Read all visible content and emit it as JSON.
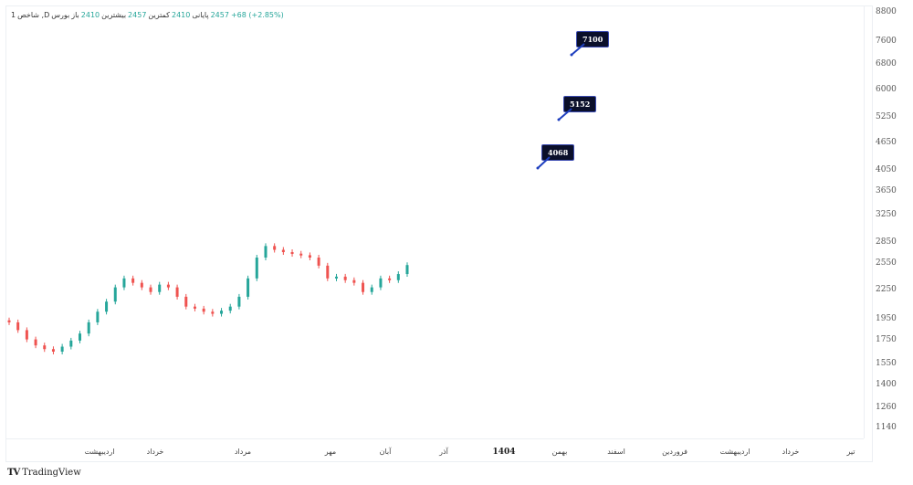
{
  "legend": {
    "interval": "1",
    "symbol": "شاخص ,D",
    "exchange": "بورس",
    "open_label": "باز",
    "open": "2410",
    "high_label": "بیشترین",
    "high": "2457",
    "low_label": "کمترین",
    "low": "2410",
    "close_label": "پایانی",
    "close": "2457",
    "change": "+68 (+2.85%)"
  },
  "colors": {
    "up": "#26a69a",
    "down": "#ef5350",
    "callout_bg": "#0a0f2a",
    "callout_border": "#3a4ab0",
    "target_line": "#1e3fbf"
  },
  "brand": {
    "logo_mark": "TV",
    "name": "TradingView"
  },
  "chart_data": {
    "type": "candlestick",
    "title": "شاخص, 1D, بورس",
    "price_axis": {
      "ticks": [
        8800,
        7600,
        6800,
        6000,
        5250,
        4650,
        4050,
        3650,
        3250,
        2850,
        2550,
        2250,
        1950,
        1750,
        1550,
        1400,
        1260,
        1140
      ],
      "scale": "log"
    },
    "time_axis": {
      "ticks": [
        "اردیبهشت",
        "خرداد",
        "مرداد",
        "مهر",
        "آبان",
        "آذر",
        "1404",
        "بهمن",
        "اسفند",
        "فروردین",
        "اردیبهشت",
        "خرداد",
        "تیر"
      ]
    },
    "last_values": {
      "open": 2410,
      "high": 2457,
      "low": 2410,
      "close": 2457,
      "change": 68,
      "change_pct": 2.85
    },
    "series_close_approx": [
      1850,
      1780,
      1700,
      1650,
      1620,
      1600,
      1640,
      1690,
      1750,
      1850,
      1950,
      2050,
      2200,
      2300,
      2250,
      2200,
      2150,
      2230,
      2200,
      2100,
      2000,
      1980,
      1950,
      1930,
      1960,
      2000,
      2100,
      2300,
      2550,
      2700,
      2650,
      2620,
      2600,
      2580,
      2550,
      2450,
      2300,
      2320,
      2280,
      2250,
      2150,
      2200,
      2300,
      2280,
      2350,
      2457
    ],
    "annotations": [
      {
        "label": "4068",
        "value": 4068
      },
      {
        "label": "5152",
        "value": 5152
      },
      {
        "label": "7100",
        "value": 7100
      }
    ],
    "grid": false,
    "legend_position": "top-left"
  }
}
